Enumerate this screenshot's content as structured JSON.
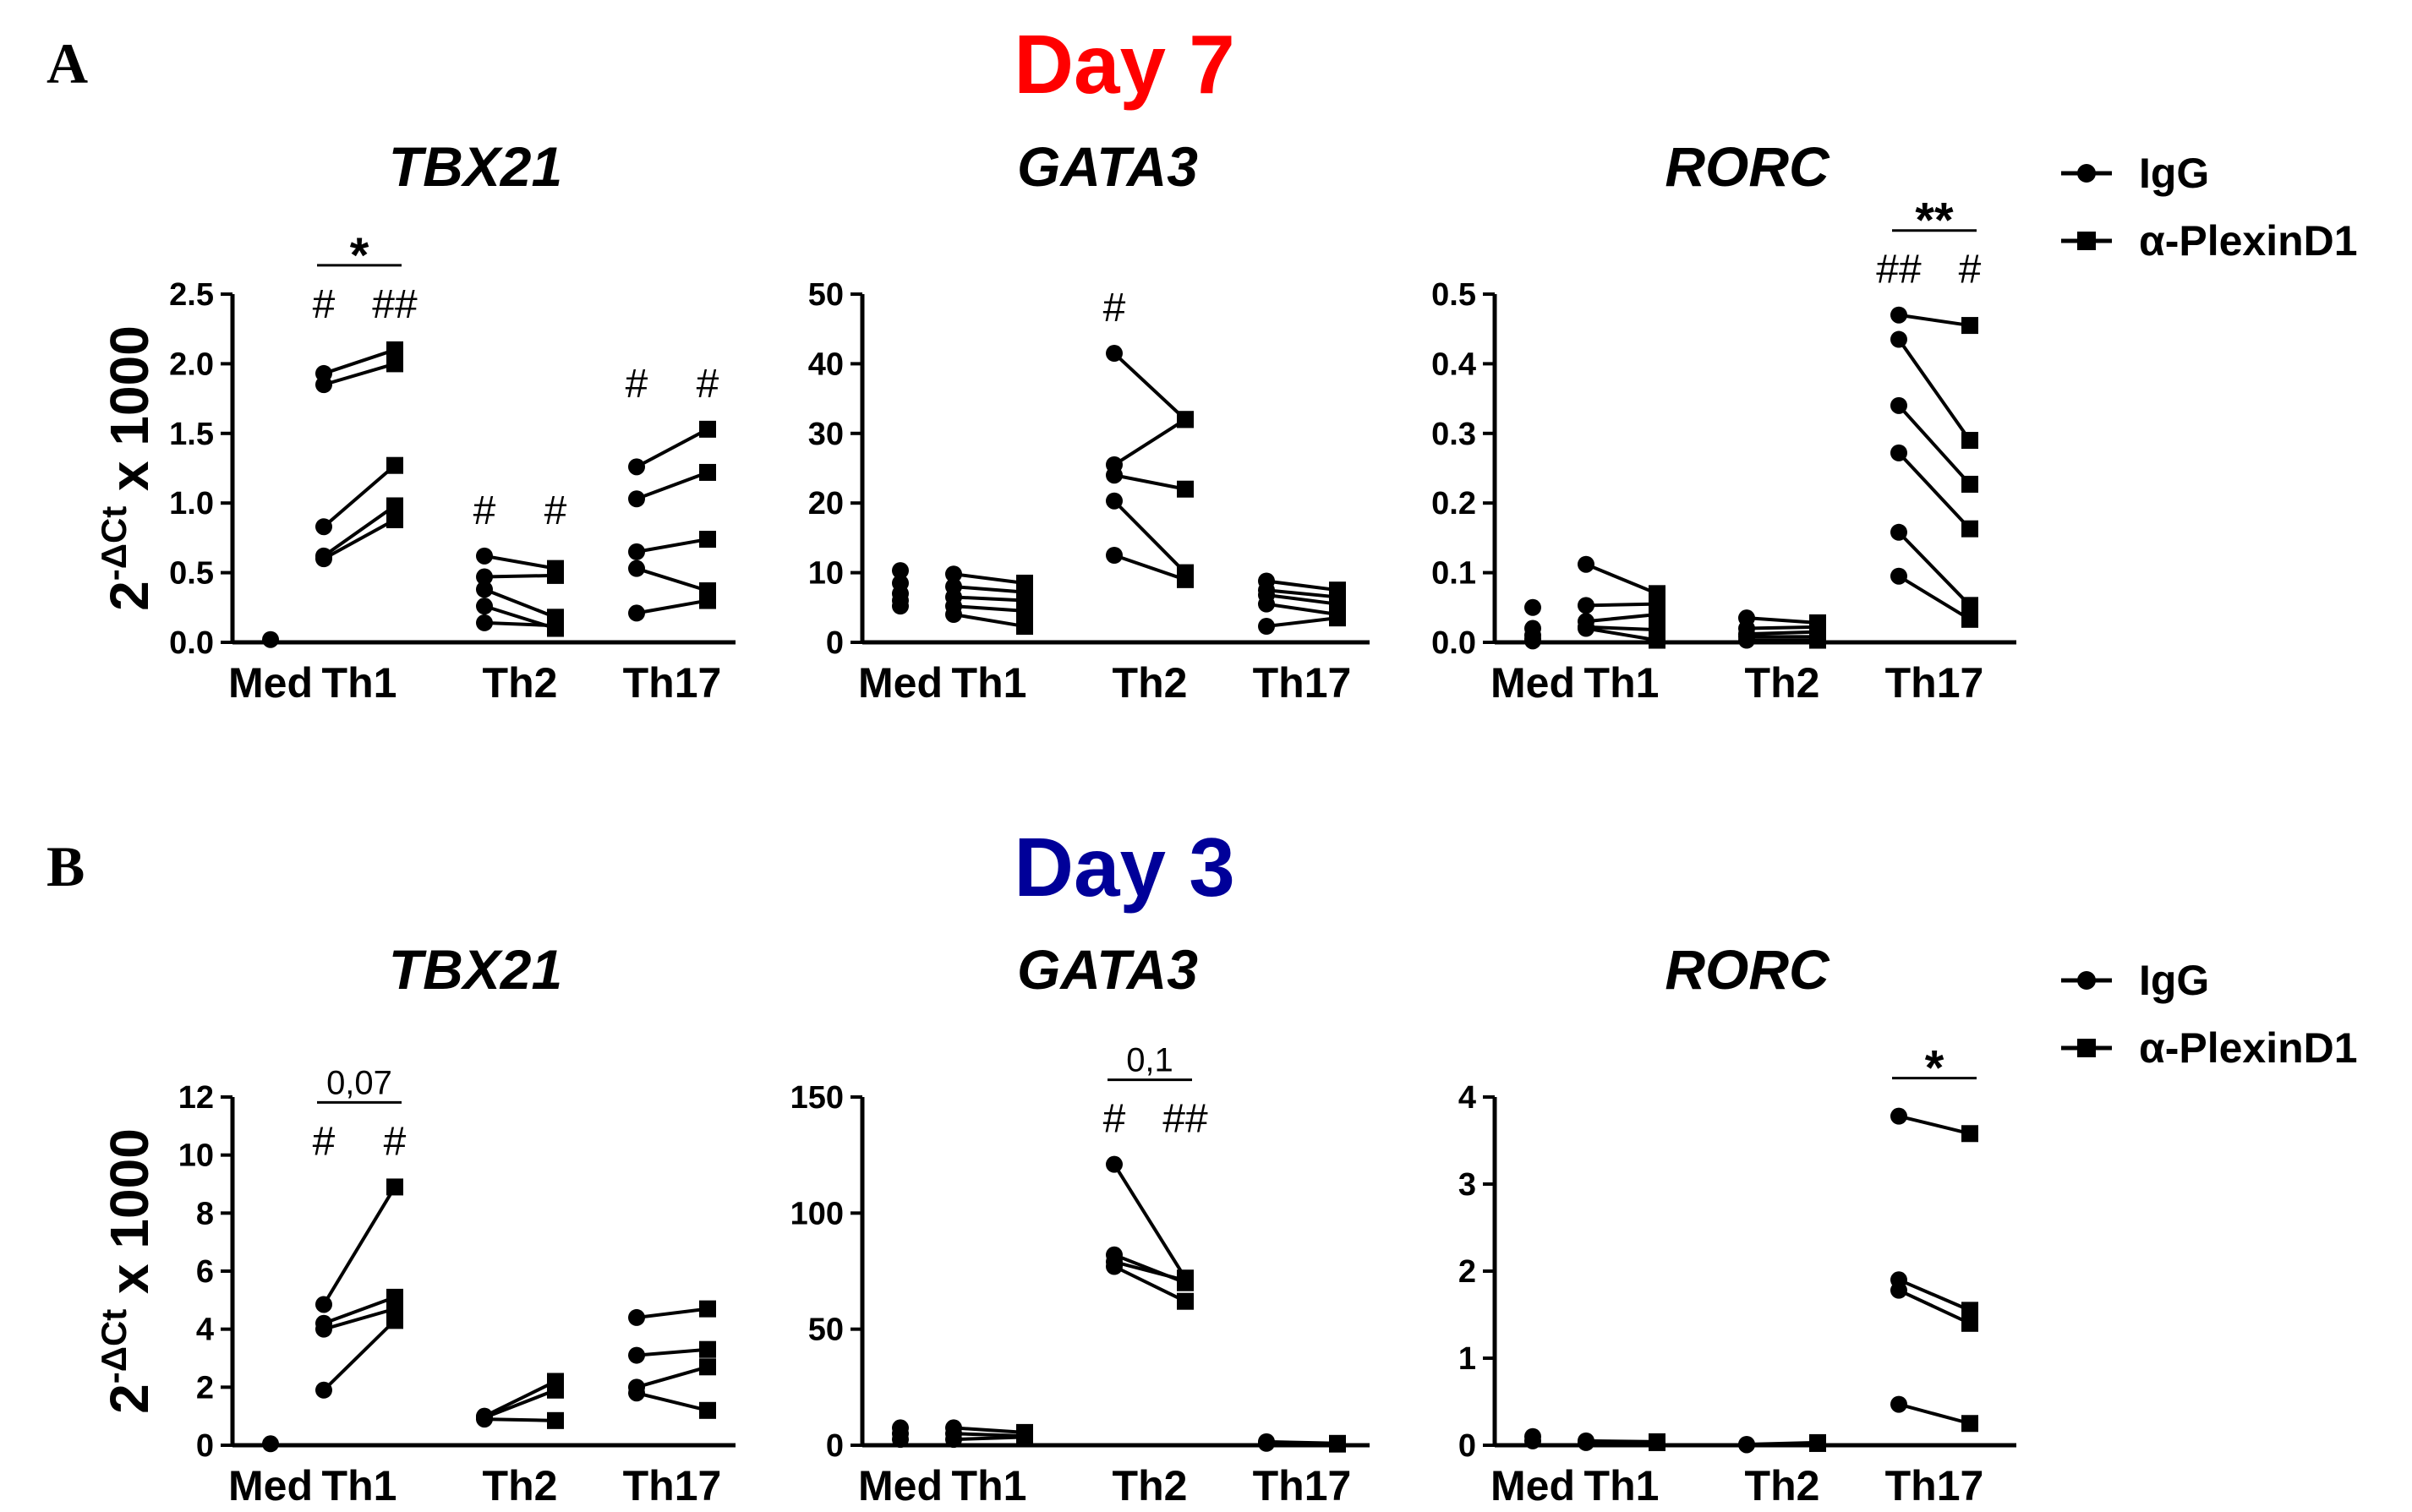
{
  "figure": {
    "panel_labels": [
      "A",
      "B"
    ],
    "day_titles": [
      {
        "text": "Day 7",
        "color": "#ff0000"
      },
      {
        "text": "Day 3",
        "color": "#000099"
      }
    ],
    "y_axis_label_base": "2",
    "y_axis_label_exponent": "-ΔCt",
    "y_axis_label_suffix": " x 1000",
    "legend": [
      {
        "label": "IgG",
        "marker": "circle"
      },
      {
        "label": "α-PlexinD1",
        "marker": "square"
      }
    ]
  },
  "chart_data": [
    {
      "type": "scatter",
      "title": "TBX21",
      "row": "Day 7",
      "ylim": [
        0,
        2.5
      ],
      "yticks": [
        "0.0",
        "0.5",
        "1.0",
        "1.5",
        "2.0",
        "2.5"
      ],
      "categories": [
        "Med",
        "Th1",
        "Th2",
        "Th17"
      ],
      "medium": [
        0.02
      ],
      "groups": [
        {
          "category": "Th1",
          "pairs": [
            [
              1.93,
              2.1
            ],
            [
              1.85,
              2.0
            ],
            [
              0.83,
              1.27
            ],
            [
              0.62,
              0.98
            ],
            [
              0.6,
              0.88
            ]
          ],
          "markers": [
            "#",
            "##"
          ],
          "bracket": "*"
        },
        {
          "category": "Th2",
          "pairs": [
            [
              0.62,
              0.53
            ],
            [
              0.47,
              0.48
            ],
            [
              0.38,
              0.18
            ],
            [
              0.26,
              0.1
            ],
            [
              0.14,
              0.12
            ]
          ],
          "markers": [
            "#",
            "#"
          ]
        },
        {
          "category": "Th17",
          "pairs": [
            [
              1.26,
              1.53
            ],
            [
              1.03,
              1.22
            ],
            [
              0.65,
              0.74
            ],
            [
              0.53,
              0.37
            ],
            [
              0.21,
              0.3
            ]
          ],
          "markers": [
            "#",
            "#"
          ]
        }
      ]
    },
    {
      "type": "scatter",
      "title": "GATA3",
      "row": "Day 7",
      "ylim": [
        0,
        50
      ],
      "yticks": [
        "0",
        "10",
        "20",
        "30",
        "40",
        "50"
      ],
      "categories": [
        "Med",
        "Th1",
        "Th2",
        "Th17"
      ],
      "medium": [
        10.3,
        8.5,
        7.0,
        6.0,
        5.2
      ],
      "groups": [
        {
          "category": "Th1",
          "pairs": [
            [
              9.8,
              8.5
            ],
            [
              8.0,
              7.2
            ],
            [
              6.5,
              6.0
            ],
            [
              5.2,
              4.5
            ],
            [
              4.0,
              2.3
            ]
          ]
        },
        {
          "category": "Th2",
          "pairs": [
            [
              41.5,
              32.0
            ],
            [
              25.5,
              32.0
            ],
            [
              24.0,
              22.0
            ],
            [
              20.3,
              10.0
            ],
            [
              12.5,
              9.0
            ]
          ],
          "markers": [
            "#"
          ]
        },
        {
          "category": "Th17",
          "pairs": [
            [
              8.8,
              7.5
            ],
            [
              7.5,
              6.5
            ],
            [
              6.8,
              5.5
            ],
            [
              5.5,
              4.0
            ],
            [
              2.3,
              3.5
            ]
          ]
        }
      ]
    },
    {
      "type": "scatter",
      "title": "RORC",
      "row": "Day 7",
      "ylim": [
        0,
        0.5
      ],
      "yticks": [
        "0.0",
        "0.1",
        "0.2",
        "0.3",
        "0.4",
        "0.5"
      ],
      "categories": [
        "Med",
        "Th1",
        "Th2",
        "Th17"
      ],
      "medium": [
        0.05,
        0.02,
        0.01,
        0.005,
        0.002
      ],
      "groups": [
        {
          "category": "Th1",
          "pairs": [
            [
              0.112,
              0.07
            ],
            [
              0.053,
              0.055
            ],
            [
              0.03,
              0.04
            ],
            [
              0.022,
              0.018
            ],
            [
              0.02,
              0.003
            ]
          ]
        },
        {
          "category": "Th2",
          "pairs": [
            [
              0.035,
              0.028
            ],
            [
              0.02,
              0.022
            ],
            [
              0.012,
              0.015
            ],
            [
              0.008,
              0.008
            ],
            [
              0.003,
              0.003
            ]
          ]
        },
        {
          "category": "Th17",
          "pairs": [
            [
              0.47,
              0.455
            ],
            [
              0.435,
              0.29
            ],
            [
              0.34,
              0.227
            ],
            [
              0.272,
              0.163
            ],
            [
              0.158,
              0.053
            ],
            [
              0.095,
              0.033
            ]
          ],
          "markers": [
            "##",
            "#"
          ],
          "bracket": "**"
        }
      ]
    },
    {
      "type": "scatter",
      "title": "TBX21",
      "row": "Day 3",
      "ylim": [
        0,
        12
      ],
      "yticks": [
        "0",
        "2",
        "4",
        "6",
        "8",
        "10",
        "12"
      ],
      "categories": [
        "Med",
        "Th1",
        "Th2",
        "Th17"
      ],
      "medium": [
        0.05
      ],
      "groups": [
        {
          "category": "Th1",
          "pairs": [
            [
              4.85,
              8.9
            ],
            [
              4.2,
              5.1
            ],
            [
              4.0,
              4.7
            ],
            [
              1.9,
              4.3
            ]
          ],
          "markers": [
            "#",
            "#"
          ],
          "bracket": "0,07"
        },
        {
          "category": "Th2",
          "pairs": [
            [
              1.0,
              2.2
            ],
            [
              0.95,
              1.9
            ],
            [
              0.9,
              0.85
            ]
          ]
        },
        {
          "category": "Th17",
          "pairs": [
            [
              4.4,
              4.7
            ],
            [
              3.1,
              3.3
            ],
            [
              2.0,
              2.7
            ],
            [
              1.8,
              1.2
            ]
          ]
        }
      ]
    },
    {
      "type": "scatter",
      "title": "GATA3",
      "row": "Day 3",
      "ylim": [
        0,
        150
      ],
      "yticks": [
        "0",
        "50",
        "100",
        "150"
      ],
      "categories": [
        "Med",
        "Th1",
        "Th2",
        "Th17"
      ],
      "medium": [
        7.5,
        5.0,
        2.5
      ],
      "groups": [
        {
          "category": "Th1",
          "pairs": [
            [
              7.5,
              5.5
            ],
            [
              5.0,
              4.0
            ],
            [
              2.5,
              3.5
            ]
          ]
        },
        {
          "category": "Th2",
          "pairs": [
            [
              121,
              72
            ],
            [
              82,
              70
            ],
            [
              79,
              71
            ],
            [
              77,
              62
            ]
          ],
          "markers": [
            "#",
            "##"
          ],
          "bracket": "0,1"
        },
        {
          "category": "Th17",
          "pairs": [
            [
              1.5,
              0.8
            ],
            [
              0.8,
              0.5
            ]
          ]
        }
      ]
    },
    {
      "type": "scatter",
      "title": "RORC",
      "row": "Day 3",
      "ylim": [
        0,
        4
      ],
      "yticks": [
        "0",
        "1",
        "2",
        "3",
        "4"
      ],
      "categories": [
        "Med",
        "Th1",
        "Th2",
        "Th17"
      ],
      "medium": [
        0.1,
        0.05
      ],
      "groups": [
        {
          "category": "Th1",
          "pairs": [
            [
              0.05,
              0.04
            ],
            [
              0.03,
              0.03
            ]
          ]
        },
        {
          "category": "Th2",
          "pairs": [
            [
              0.01,
              0.03
            ],
            [
              0.005,
              0.02
            ]
          ]
        },
        {
          "category": "Th17",
          "pairs": [
            [
              3.78,
              3.58
            ],
            [
              1.9,
              1.55
            ],
            [
              1.78,
              1.4
            ],
            [
              0.47,
              0.25
            ]
          ],
          "bracket": "*"
        }
      ]
    }
  ]
}
